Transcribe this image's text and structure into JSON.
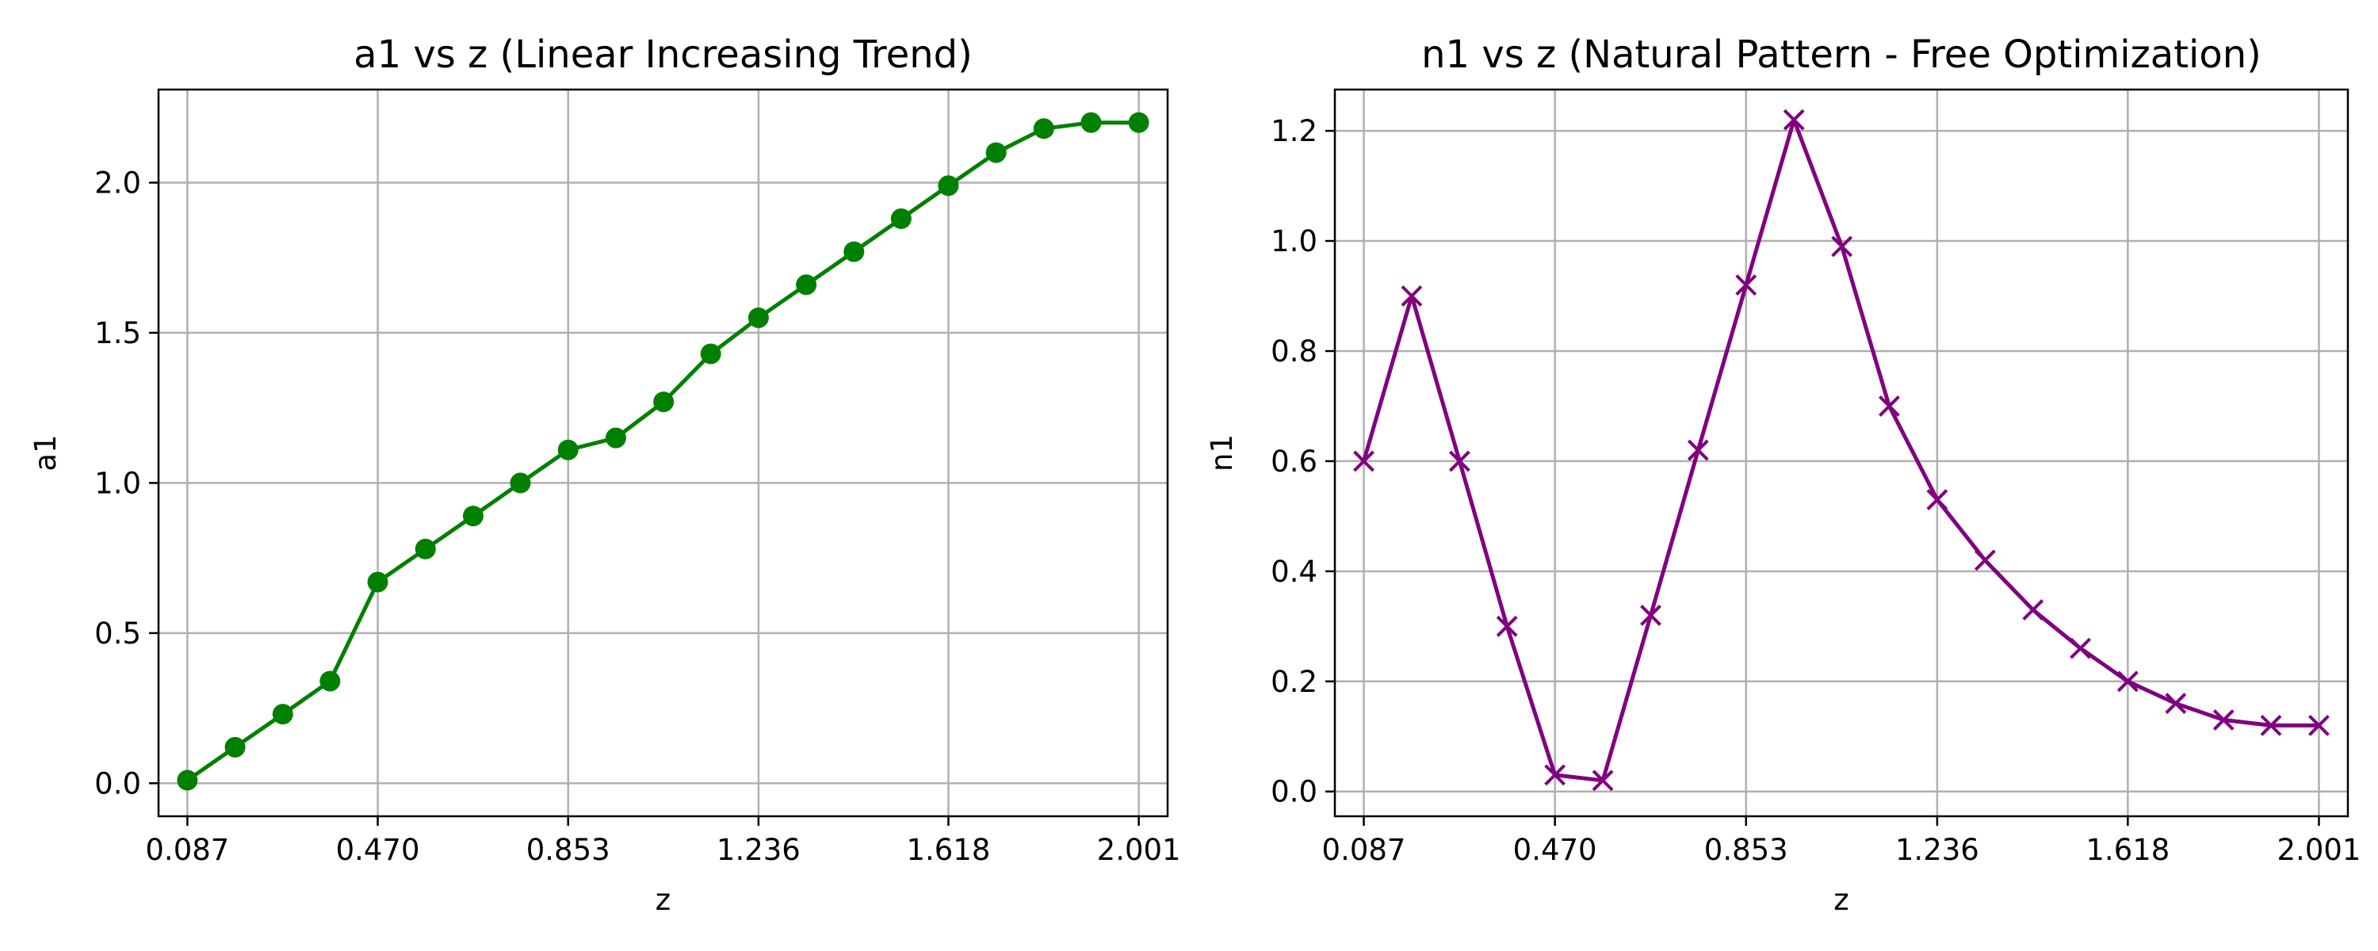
{
  "chart_data": [
    {
      "type": "line",
      "title": "a1 vs z (Linear Increasing Trend)",
      "xlabel": "z",
      "ylabel": "a1",
      "xlim": [
        0.029,
        2.059
      ],
      "ylim": [
        -0.11,
        2.31
      ],
      "xticks": [
        0.087,
        0.47,
        0.853,
        1.236,
        1.618,
        2.001
      ],
      "xtick_labels": [
        "0.087",
        "0.470",
        "0.853",
        "1.236",
        "1.618",
        "2.001"
      ],
      "yticks": [
        0.0,
        0.5,
        1.0,
        1.5,
        2.0
      ],
      "ytick_labels": [
        "0.0",
        "0.5",
        "1.0",
        "1.5",
        "2.0"
      ],
      "grid": true,
      "series": [
        {
          "color": "#008000",
          "marker": "circle",
          "x": [
            0.087,
            0.183,
            0.279,
            0.374,
            0.47,
            0.566,
            0.662,
            0.757,
            0.853,
            0.949,
            1.045,
            1.14,
            1.236,
            1.332,
            1.428,
            1.523,
            1.618,
            1.714,
            1.81,
            1.905,
            2.001
          ],
          "y": [
            0.01,
            0.12,
            0.23,
            0.34,
            0.67,
            0.78,
            0.89,
            1.0,
            1.11,
            1.15,
            1.27,
            1.43,
            1.55,
            1.66,
            1.77,
            1.88,
            1.99,
            2.1,
            2.18,
            2.2,
            2.2
          ]
        }
      ]
    },
    {
      "type": "line",
      "title": "n1 vs z (Natural Pattern - Free Optimization)",
      "xlabel": "z",
      "ylabel": "n1",
      "xlim": [
        0.029,
        2.059
      ],
      "ylim": [
        -0.045,
        1.275
      ],
      "xticks": [
        0.087,
        0.47,
        0.853,
        1.236,
        1.618,
        2.001
      ],
      "xtick_labels": [
        "0.087",
        "0.470",
        "0.853",
        "1.236",
        "1.618",
        "2.001"
      ],
      "yticks": [
        0.0,
        0.2,
        0.4,
        0.6,
        0.8,
        1.0,
        1.2
      ],
      "ytick_labels": [
        "0.0",
        "0.2",
        "0.4",
        "0.6",
        "0.8",
        "1.0",
        "1.2"
      ],
      "grid": true,
      "series": [
        {
          "color": "#800080",
          "marker": "x",
          "x": [
            0.087,
            0.183,
            0.279,
            0.374,
            0.47,
            0.566,
            0.662,
            0.757,
            0.853,
            0.949,
            1.045,
            1.14,
            1.236,
            1.332,
            1.428,
            1.523,
            1.618,
            1.714,
            1.81,
            1.905,
            2.001
          ],
          "y": [
            0.6,
            0.9,
            0.6,
            0.3,
            0.03,
            0.02,
            0.32,
            0.62,
            0.92,
            1.22,
            0.99,
            0.7,
            0.53,
            0.42,
            0.33,
            0.26,
            0.2,
            0.16,
            0.13,
            0.12,
            0.12
          ]
        }
      ]
    }
  ]
}
